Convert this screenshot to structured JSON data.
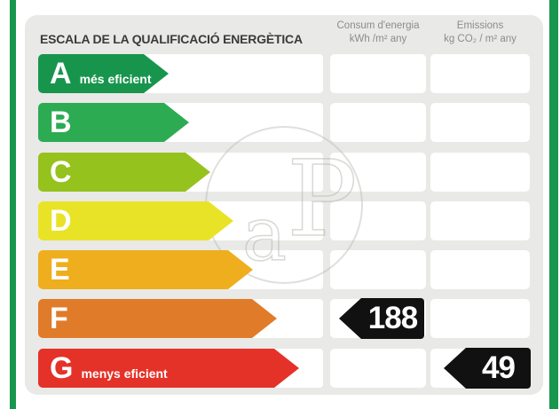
{
  "header": {
    "title": "ESCALA DE LA QUALIFICACIÓ ENERGÈTICA",
    "columns": [
      {
        "name": "consumption",
        "line1": "Consum d'energia",
        "line2": "kWh /m² any"
      },
      {
        "name": "emissions",
        "line1": "Emissions",
        "line2": "kg CO₂ / m² any"
      }
    ]
  },
  "scale": {
    "ratings": [
      {
        "letter": "A",
        "label": "més eficient",
        "color": "#18954d",
        "arrow_width": 147
      },
      {
        "letter": "B",
        "label": "",
        "color": "#2cab53",
        "arrow_width": 170
      },
      {
        "letter": "C",
        "label": "",
        "color": "#96c21e",
        "arrow_width": 194
      },
      {
        "letter": "D",
        "label": "",
        "color": "#e9e327",
        "arrow_width": 220
      },
      {
        "letter": "E",
        "label": "",
        "color": "#efae1d",
        "arrow_width": 242
      },
      {
        "letter": "F",
        "label": "",
        "color": "#e07b2a",
        "arrow_width": 269
      },
      {
        "letter": "G",
        "label": "menys eficient",
        "color": "#e43228",
        "arrow_width": 294
      }
    ]
  },
  "values": {
    "consumption": {
      "value": "188",
      "rating_row": "F"
    },
    "emissions": {
      "value": "49",
      "rating_row": "G"
    }
  },
  "watermark": {
    "text_a": "a",
    "text_p": "P"
  },
  "frame": {
    "stripe_color": "#18964e",
    "panel_color": "#e9e9e7"
  }
}
